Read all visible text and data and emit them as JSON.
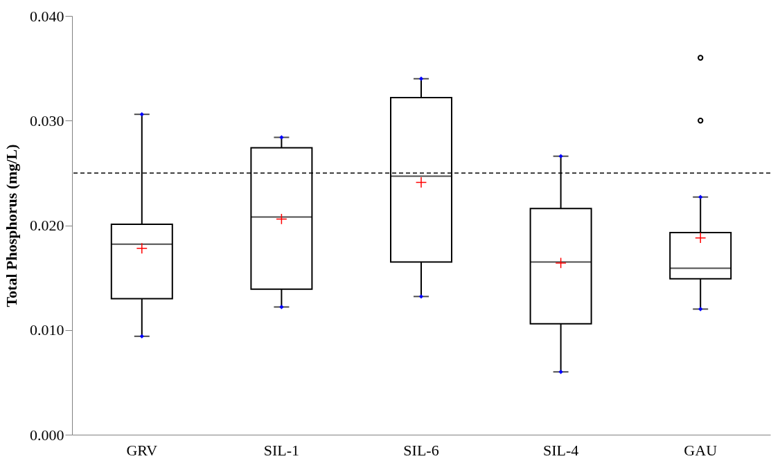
{
  "chart_data": {
    "type": "box",
    "ylabel": "Total Phosphorus (mg/L)",
    "categories": [
      "GRV",
      "SIL-1",
      "SIL-6",
      "SIL-4",
      "GAU"
    ],
    "boxes": [
      {
        "low": 0.0094,
        "q1": 0.013,
        "median": 0.0182,
        "q3": 0.0201,
        "high": 0.0306,
        "mean": 0.0178
      },
      {
        "low": 0.0122,
        "q1": 0.0139,
        "median": 0.0208,
        "q3": 0.0274,
        "high": 0.0284,
        "mean": 0.0206
      },
      {
        "low": 0.0132,
        "q1": 0.0165,
        "median": 0.0247,
        "q3": 0.0322,
        "high": 0.034,
        "mean": 0.0241
      },
      {
        "low": 0.006,
        "q1": 0.0106,
        "median": 0.0165,
        "q3": 0.0216,
        "high": 0.0266,
        "mean": 0.0164
      },
      {
        "low": 0.012,
        "q1": 0.0149,
        "median": 0.0159,
        "q3": 0.0193,
        "high": 0.0227,
        "mean": 0.0188,
        "outliers": [
          0.03,
          0.036
        ]
      }
    ],
    "ylim": [
      0,
      0.04
    ],
    "yticks": [
      {
        "value": 0,
        "label": "0.000"
      },
      {
        "value": 0.01,
        "label": "0.010"
      },
      {
        "value": 0.02,
        "label": "0.020"
      },
      {
        "value": 0.03,
        "label": "0.030"
      },
      {
        "value": 0.04,
        "label": "0.040"
      }
    ],
    "ref_lines": [
      {
        "axis": "y",
        "value": 0.025,
        "line_style": "dashed",
        "color": "#000000"
      }
    ],
    "series": [
      {
        "type": "scatter",
        "color": "#0000ff",
        "marker": "diamond",
        "x": [
          "GRV",
          "SIL-1",
          "SIL-6",
          "SIL-4",
          "GAU"
        ],
        "values": [
          0.0094,
          0.0122,
          0.0132,
          0.006,
          0.012
        ]
      },
      {
        "type": "scatter",
        "color": "#0000ff",
        "marker": "diamond",
        "x": [
          "GRV",
          "SIL-1",
          "SIL-6",
          "SIL-4",
          "GAU"
        ],
        "values": [
          0.0306,
          0.0284,
          0.034,
          0.0266,
          0.0227
        ]
      }
    ],
    "grid": false
  }
}
